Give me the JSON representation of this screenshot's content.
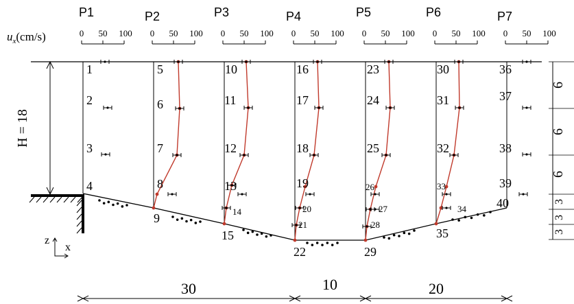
{
  "profiles": [
    {
      "label": "P1"
    },
    {
      "label": "P2"
    },
    {
      "label": "P3"
    },
    {
      "label": "P4"
    },
    {
      "label": "P5"
    },
    {
      "label": "P6"
    },
    {
      "label": "P7"
    }
  ],
  "velocity_scale": {
    "var_symbol": "u",
    "var_subscript": "x",
    "unit": "(cm/s)",
    "ticks": [
      "0",
      "50",
      "100"
    ]
  },
  "depth_label": "H = 18",
  "right_dims": [
    "6",
    "6",
    "6",
    "3",
    "3",
    "3"
  ],
  "bottom_dims": [
    "30",
    "10",
    "20"
  ],
  "axes": {
    "z": "z",
    "x": "x"
  },
  "nodes": [
    "1",
    "2",
    "3",
    "4",
    "5",
    "6",
    "7",
    "8",
    "9",
    "10",
    "11",
    "12",
    "13",
    "14",
    "15",
    "16",
    "17",
    "18",
    "19",
    "20",
    "21",
    "22",
    "23",
    "24",
    "25",
    "26",
    "27",
    "28",
    "29",
    "30",
    "31",
    "32",
    "33",
    "34",
    "35",
    "36",
    "37",
    "38",
    "39",
    "40"
  ],
  "colors": {
    "profile_line": "#c0392b",
    "marker": "#c0392b",
    "ink": "#000000"
  }
}
